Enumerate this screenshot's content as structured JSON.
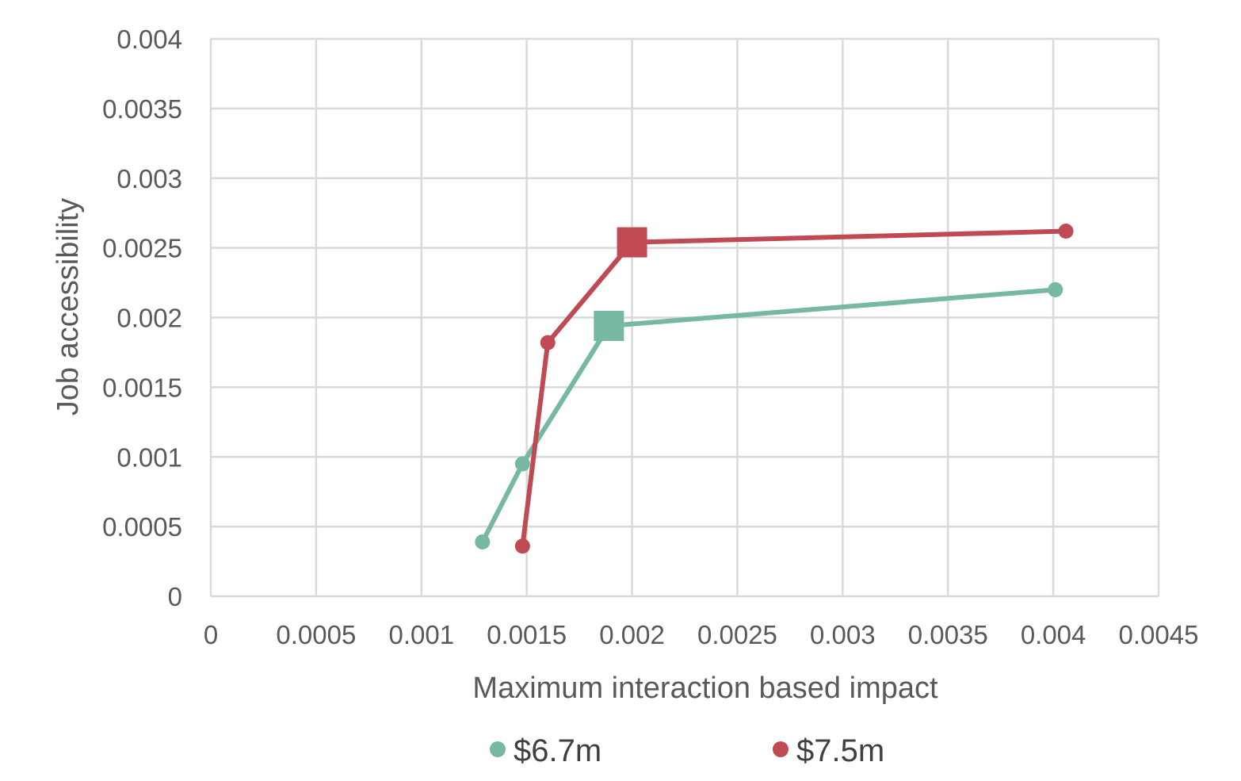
{
  "chart_data": {
    "type": "line",
    "xlabel": "Maximum interaction based impact",
    "ylabel": "Job accessibility",
    "xlim": [
      0,
      0.0045
    ],
    "ylim": [
      0,
      0.004
    ],
    "x_ticks": [
      "0",
      "0.0005",
      "0.001",
      "0.0015",
      "0.002",
      "0.0025",
      "0.003",
      "0.0035",
      "0.004",
      "0.0045"
    ],
    "y_ticks": [
      "0",
      "0.0005",
      "0.001",
      "0.0015",
      "0.002",
      "0.0025",
      "0.003",
      "0.0035",
      "0.004"
    ],
    "grid": true,
    "legend_position": "bottom",
    "series": [
      {
        "name": "$6.7m",
        "color": "#76b8a0",
        "points": [
          {
            "x": 0.00129,
            "y": 0.00039
          },
          {
            "x": 0.00148,
            "y": 0.00095
          },
          {
            "x": 0.00189,
            "y": 0.00194,
            "highlight": true
          },
          {
            "x": 0.00401,
            "y": 0.0022
          }
        ]
      },
      {
        "name": "$7.5m",
        "color": "#bf4a53",
        "points": [
          {
            "x": 0.00148,
            "y": 0.00036
          },
          {
            "x": 0.0016,
            "y": 0.00182
          },
          {
            "x": 0.002,
            "y": 0.00254,
            "highlight": true
          },
          {
            "x": 0.00406,
            "y": 0.00262
          }
        ]
      }
    ]
  }
}
